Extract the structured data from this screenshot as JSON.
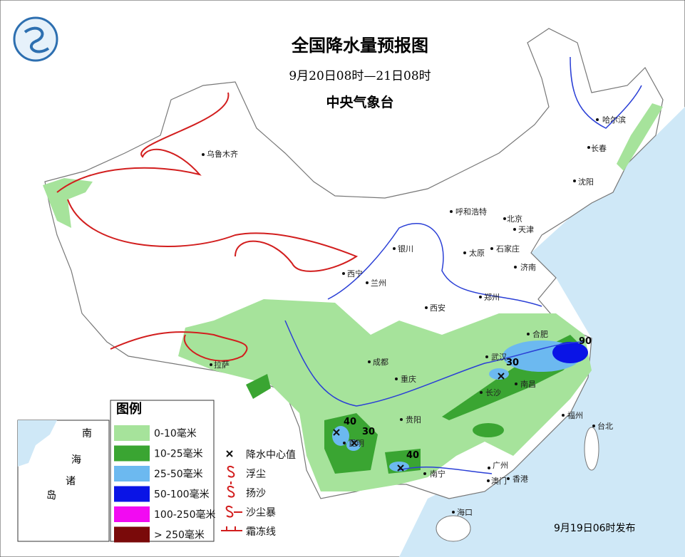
{
  "header": {
    "title": "全国降水量预报图",
    "period": "9月20日08时—21日08时",
    "issuer": "中央气象台"
  },
  "legend": {
    "title": "图例",
    "items": [
      {
        "label": "0-10毫米",
        "color": "#a6e39b"
      },
      {
        "label": "10-25毫米",
        "color": "#3aa532"
      },
      {
        "label": "25-50毫米",
        "color": "#6cb9f0"
      },
      {
        "label": "50-100毫米",
        "color": "#0a14e6"
      },
      {
        "label": "100-250毫米",
        "color": "#f20af2"
      },
      {
        "label": "> 250毫米",
        "color": "#7a0a0a"
      }
    ],
    "symbols": [
      "降水中心值",
      "浮尘",
      "扬沙",
      "沙尘暴",
      "霜冻线"
    ]
  },
  "inset": {
    "labels": [
      "南",
      "海",
      "诸",
      "岛"
    ]
  },
  "cities": [
    "哈尔滨",
    "长春",
    "沈阳",
    "乌鲁木齐",
    "呼和浩特",
    "北京",
    "天津",
    "石家庄",
    "太原",
    "济南",
    "银川",
    "西宁",
    "兰州",
    "郑州",
    "西安",
    "合肥",
    "武汉",
    "南昌",
    "长沙",
    "福州",
    "台北",
    "拉萨",
    "成都",
    "重庆",
    "贵阳",
    "昆明",
    "南宁",
    "广州",
    "澳门",
    "香港",
    "海口"
  ],
  "centers": [
    {
      "value": 90
    },
    {
      "value": 30
    },
    {
      "value": 40
    },
    {
      "value": 30
    },
    {
      "value": 40
    }
  ],
  "footer": {
    "issued": "9月19日06时发布"
  }
}
